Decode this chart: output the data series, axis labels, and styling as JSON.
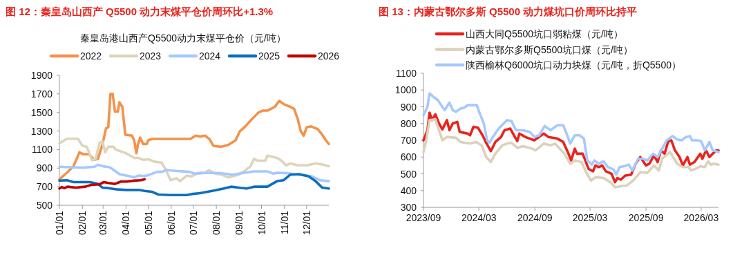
{
  "chart_data": [
    {
      "type": "line",
      "title": "图 12：秦皇岛山西产 Q5500 动力末煤平仓价周环比+1.3%",
      "subtitle": "秦皇岛港山西产Q5500动力末煤平仓价（元/吨）",
      "legend": "top",
      "xlim": [
        "--01-01",
        "--12-31"
      ],
      "xticks": [
        {
          "value": "--01-01",
          "label": "01/01"
        },
        {
          "value": "--02-01",
          "label": "02/01"
        },
        {
          "value": "--03-01",
          "label": "03/01"
        },
        {
          "value": "--04-01",
          "label": "04/01"
        },
        {
          "value": "--05-01",
          "label": "05/01"
        },
        {
          "value": "--06-01",
          "label": "06/01"
        },
        {
          "value": "--07-01",
          "label": "07/01"
        },
        {
          "value": "--08-01",
          "label": "08/01"
        },
        {
          "value": "--09-01",
          "label": "09/01"
        },
        {
          "value": "--10-01",
          "label": "10/01"
        },
        {
          "value": "--11-01",
          "label": "11/01"
        },
        {
          "value": "--12-01",
          "label": "12/01"
        }
      ],
      "ylim": [
        500,
        1900
      ],
      "yticks": [
        500,
        700,
        900,
        1100,
        1300,
        1500,
        1700,
        1900
      ],
      "series": [
        {
          "name": "2022",
          "color": "#f4914a",
          "x": [
            "--01-01",
            "--01-11",
            "--01-20",
            "--01-28",
            "--02-02",
            "--02-10",
            "--02-17",
            "--02-22",
            "--02-28",
            "--03-05",
            "--03-08",
            "--03-11",
            "--03-14",
            "--03-17",
            "--03-21",
            "--03-23",
            "--03-27",
            "--03-31",
            "--04-09",
            "--04-12",
            "--04-15",
            "--04-17",
            "--04-20",
            "--04-24",
            "--04-29",
            "--05-01",
            "--05-06",
            "--06-27",
            "--07-04",
            "--07-10",
            "--07-17",
            "--07-23",
            "--07-28",
            "--08-07",
            "--08-17",
            "--08-27",
            "--09-02",
            "--09-08",
            "--09-17",
            "--09-27",
            "--10-03",
            "--10-09",
            "--10-19",
            "--10-25",
            "--10-31",
            "--11-09",
            "--11-14",
            "--11-19",
            "--11-23",
            "--11-27",
            "--12-01",
            "--12-07",
            "--12-16",
            "--12-22",
            "--12-27",
            "--12-31"
          ],
          "values": [
            780,
            850,
            920,
            1070,
            1050,
            1050,
            990,
            1000,
            1150,
            1330,
            1340,
            1700,
            1700,
            1510,
            1510,
            1610,
            1560,
            1260,
            1250,
            1200,
            1060,
            1150,
            1230,
            1160,
            1160,
            1200,
            1215,
            1215,
            1250,
            1240,
            1250,
            1210,
            1140,
            1130,
            1150,
            1200,
            1300,
            1340,
            1420,
            1500,
            1520,
            1520,
            1560,
            1625,
            1590,
            1560,
            1540,
            1430,
            1300,
            1250,
            1340,
            1350,
            1320,
            1260,
            1200,
            1160
          ]
        },
        {
          "name": "2023",
          "color": "#ddd4bb",
          "x": [
            "--01-01",
            "--01-11",
            "--01-26",
            "--02-01",
            "--02-07",
            "--02-11",
            "--02-14",
            "--02-19",
            "--02-24",
            "--02-28",
            "--03-04",
            "--03-08",
            "--03-15",
            "--03-18",
            "--04-01",
            "--04-12",
            "--04-18",
            "--04-24",
            "--05-02",
            "--05-09",
            "--05-19",
            "--05-25",
            "--05-31",
            "--06-08",
            "--06-13",
            "--06-22",
            "--06-28",
            "--07-08",
            "--07-17",
            "--07-22",
            "--07-30",
            "--08-08",
            "--08-17",
            "--08-31",
            "--09-08",
            "--09-16",
            "--09-21",
            "--09-26",
            "--10-06",
            "--10-09",
            "--10-22",
            "--10-28",
            "--11-03",
            "--11-09",
            "--11-19",
            "--12-01",
            "--12-13",
            "--12-22",
            "--12-31"
          ],
          "values": [
            1167,
            1217,
            1217,
            1142,
            1130,
            1050,
            985,
            1000,
            1170,
            1190,
            1070,
            1130,
            1130,
            1100,
            1060,
            1010,
            1010,
            990,
            995,
            970,
            960,
            880,
            770,
            790,
            760,
            820,
            810,
            850,
            850,
            880,
            840,
            830,
            800,
            830,
            870,
            920,
            1000,
            980,
            980,
            1035,
            1010,
            980,
            930,
            950,
            930,
            930,
            950,
            940,
            920
          ]
        },
        {
          "name": "2024",
          "color": "#a6c8ff",
          "x": [
            "--01-01",
            "--01-14",
            "--02-02",
            "--02-17",
            "--02-22",
            "--03-01",
            "--03-10",
            "--03-17",
            "--03-23",
            "--04-05",
            "--04-12",
            "--04-18",
            "--04-26",
            "--05-03",
            "--05-13",
            "--05-20",
            "--05-25",
            "--06-07",
            "--06-25",
            "--07-03",
            "--07-20",
            "--08-08",
            "--08-23",
            "--09-08",
            "--09-21",
            "--10-09",
            "--10-17",
            "--10-22",
            "--11-06",
            "--11-21",
            "--12-07",
            "--12-19",
            "--12-31"
          ],
          "values": [
            915,
            910,
            905,
            915,
            935,
            920,
            910,
            870,
            835,
            815,
            800,
            820,
            815,
            830,
            860,
            860,
            880,
            870,
            860,
            840,
            850,
            845,
            830,
            850,
            865,
            865,
            840,
            850,
            845,
            830,
            815,
            770,
            760
          ]
        },
        {
          "name": "2025",
          "color": "#0b6fc0",
          "x": [
            "--01-01",
            "--01-11",
            "--01-20",
            "--02-11",
            "--02-22",
            "--02-28",
            "--03-08",
            "--03-21",
            "--04-01",
            "--04-18",
            "--04-26",
            "--05-06",
            "--05-15",
            "--05-31",
            "--06-22",
            "--06-28",
            "--07-10",
            "--07-30",
            "--08-11",
            "--08-21",
            "--08-31",
            "--09-11",
            "--09-21",
            "--10-09",
            "--10-22",
            "--10-31",
            "--11-09",
            "--11-21",
            "--12-04",
            "--12-13",
            "--12-22",
            "--12-31"
          ],
          "values": [
            765,
            770,
            750,
            750,
            730,
            690,
            685,
            670,
            665,
            665,
            655,
            645,
            615,
            610,
            610,
            620,
            630,
            660,
            680,
            700,
            690,
            680,
            700,
            700,
            760,
            770,
            830,
            835,
            810,
            760,
            690,
            680
          ]
        },
        {
          "name": "2026",
          "color": "#c00000",
          "x": [
            "--01-01",
            "--01-04",
            "--01-08",
            "--01-12",
            "--01-23",
            "--02-05",
            "--02-13",
            "--02-24",
            "--03-02",
            "--03-08",
            "--03-17",
            "--03-25",
            "--04-02",
            "--04-12",
            "--04-21",
            "--04-26"
          ],
          "values": [
            680,
            695,
            685,
            700,
            690,
            700,
            720,
            725,
            750,
            740,
            730,
            755,
            755,
            765,
            770,
            780
          ]
        }
      ]
    },
    {
      "type": "line",
      "title": "图 13：内蒙古鄂尔多斯 Q5500 动力煤坑口价周环比持平",
      "legend": "top",
      "xlim": [
        "2023-09-01",
        "2026-04-27"
      ],
      "xticks": [
        {
          "value": "2023-09-01",
          "label": "2023/09"
        },
        {
          "value": "2024-03-01",
          "label": "2024/03"
        },
        {
          "value": "2024-09-01",
          "label": "2024/09"
        },
        {
          "value": "2025-03-01",
          "label": "2025/03"
        },
        {
          "value": "2025-09-01",
          "label": "2025/09"
        },
        {
          "value": "2026-03-01",
          "label": "2026/03"
        }
      ],
      "ylim": [
        300,
        1100
      ],
      "yticks": [
        300,
        400,
        500,
        600,
        700,
        800,
        900,
        1000,
        1100
      ],
      "series": [
        {
          "name": "山西大同Q5500坑口弱粘煤（元/吨）",
          "color": "#e8231c",
          "x": [
            "2023-09-01",
            "2023-09-14",
            "2023-09-21",
            "2023-09-29",
            "2023-10-10",
            "2023-10-22",
            "2023-11-02",
            "2023-11-17",
            "2023-11-25",
            "2023-12-06",
            "2023-12-21",
            "2023-12-29",
            "2024-01-24",
            "2024-02-01",
            "2024-02-12",
            "2024-02-27",
            "2024-03-13",
            "2024-03-25",
            "2024-04-09",
            "2024-04-24",
            "2024-05-13",
            "2024-05-24",
            "2024-06-12",
            "2024-06-27",
            "2024-07-05",
            "2024-07-12",
            "2024-07-31",
            "2024-08-30",
            "2024-09-30",
            "2024-10-15",
            "2024-11-14",
            "2024-12-03",
            "2024-12-18",
            "2024-12-29",
            "2025-01-10",
            "2025-01-17",
            "2025-02-05",
            "2025-02-24",
            "2025-03-11",
            "2025-03-19",
            "2025-03-30",
            "2025-04-10",
            "2025-04-22",
            "2025-05-11",
            "2025-05-22",
            "2025-05-30",
            "2025-06-10",
            "2025-06-25",
            "2025-07-14",
            "2025-07-29",
            "2025-08-13",
            "2025-09-01",
            "2025-09-12",
            "2025-09-27",
            "2025-10-09",
            "2025-10-20",
            "2025-11-01",
            "2025-11-12",
            "2025-11-23",
            "2025-12-05",
            "2025-12-20",
            "2025-12-31",
            "2026-01-15",
            "2026-01-23",
            "2026-02-07",
            "2026-02-26",
            "2026-03-05",
            "2026-03-17",
            "2026-03-28",
            "2026-04-08",
            "2026-04-20",
            "2026-04-27"
          ],
          "values": [
            700,
            760,
            865,
            820,
            855,
            800,
            765,
            820,
            760,
            800,
            810,
            750,
            740,
            730,
            780,
            775,
            730,
            685,
            635,
            690,
            720,
            760,
            770,
            720,
            695,
            740,
            720,
            700,
            740,
            720,
            710,
            690,
            630,
            580,
            650,
            620,
            620,
            530,
            515,
            550,
            540,
            550,
            515,
            500,
            450,
            475,
            465,
            490,
            495,
            560,
            600,
            550,
            560,
            610,
            570,
            640,
            620,
            690,
            700,
            640,
            600,
            550,
            600,
            555,
            570,
            620,
            590,
            640,
            600,
            620,
            640,
            640
          ]
        },
        {
          "name": "内蒙古鄂尔多斯Q5500坑口煤（元/吨）",
          "color": "#dcd1b9",
          "x": [
            "2023-09-01",
            "2023-09-10",
            "2023-09-21",
            "2023-10-10",
            "2023-10-22",
            "2023-11-02",
            "2023-11-17",
            "2023-12-17",
            "2024-01-01",
            "2024-02-01",
            "2024-02-20",
            "2024-03-10",
            "2024-03-25",
            "2024-04-09",
            "2024-04-24",
            "2024-05-17",
            "2024-06-01",
            "2024-06-16",
            "2024-07-05",
            "2024-07-24",
            "2024-08-23",
            "2024-09-03",
            "2024-09-30",
            "2024-10-22",
            "2024-11-06",
            "2024-12-07",
            "2024-12-26",
            "2025-01-10",
            "2025-02-01",
            "2025-02-16",
            "2025-03-04",
            "2025-03-19",
            "2025-04-14",
            "2025-05-07",
            "2025-05-22",
            "2025-06-06",
            "2025-06-29",
            "2025-07-21",
            "2025-08-13",
            "2025-09-05",
            "2025-09-27",
            "2025-10-13",
            "2025-10-24",
            "2025-11-19",
            "2025-12-12",
            "2025-12-31",
            "2026-01-19",
            "2026-01-26",
            "2026-02-11",
            "2026-02-26",
            "2026-03-13",
            "2026-03-24",
            "2026-04-01",
            "2026-04-12",
            "2026-04-27"
          ],
          "values": [
            630,
            700,
            820,
            825,
            760,
            700,
            720,
            715,
            690,
            680,
            690,
            670,
            600,
            570,
            620,
            670,
            680,
            685,
            655,
            665,
            650,
            640,
            680,
            670,
            680,
            620,
            560,
            580,
            570,
            510,
            460,
            480,
            475,
            450,
            420,
            425,
            430,
            460,
            510,
            505,
            550,
            520,
            590,
            630,
            560,
            540,
            540,
            520,
            530,
            545,
            540,
            575,
            555,
            560,
            555
          ]
        },
        {
          "name": "陕西榆林Q6000坑口动力块煤（元/吨，折Q5500）",
          "color": "#a6c8ff",
          "x": [
            "2023-09-01",
            "2023-09-14",
            "2023-09-21",
            "2023-10-03",
            "2023-10-18",
            "2023-11-02",
            "2023-11-10",
            "2023-11-25",
            "2023-12-06",
            "2023-12-17",
            "2024-01-01",
            "2024-01-13",
            "2024-01-24",
            "2024-02-23",
            "2024-03-02",
            "2024-03-17",
            "2024-03-28",
            "2024-04-05",
            "2024-04-16",
            "2024-05-05",
            "2024-06-01",
            "2024-06-16",
            "2024-07-01",
            "2024-07-24",
            "2024-08-15",
            "2024-08-30",
            "2024-09-15",
            "2024-10-03",
            "2024-10-22",
            "2024-11-14",
            "2024-12-03",
            "2024-12-14",
            "2024-12-26",
            "2025-01-10",
            "2025-01-25",
            "2025-02-09",
            "2025-02-20",
            "2025-03-07",
            "2025-03-15",
            "2025-03-30",
            "2025-04-14",
            "2025-04-29",
            "2025-05-18",
            "2025-05-26",
            "2025-06-06",
            "2025-06-21",
            "2025-07-06",
            "2025-07-18",
            "2025-08-06",
            "2025-08-21",
            "2025-09-05",
            "2025-09-24",
            "2025-10-09",
            "2025-10-24",
            "2025-11-08",
            "2025-11-27",
            "2025-12-12",
            "2025-12-27",
            "2026-01-11",
            "2026-01-23",
            "2026-01-30",
            "2026-02-18",
            "2026-03-01",
            "2026-03-13",
            "2026-03-28",
            "2026-04-08",
            "2026-04-27"
          ],
          "values": [
            850,
            900,
            980,
            960,
            940,
            900,
            880,
            925,
            880,
            870,
            890,
            895,
            910,
            910,
            870,
            800,
            700,
            685,
            720,
            770,
            820,
            815,
            760,
            760,
            750,
            720,
            730,
            785,
            760,
            790,
            790,
            740,
            680,
            730,
            730,
            710,
            580,
            555,
            580,
            560,
            575,
            540,
            525,
            495,
            540,
            545,
            555,
            520,
            590,
            590,
            580,
            620,
            600,
            650,
            700,
            725,
            705,
            700,
            720,
            725,
            700,
            700,
            695,
            640,
            690,
            640,
            630
          ]
        }
      ]
    }
  ]
}
